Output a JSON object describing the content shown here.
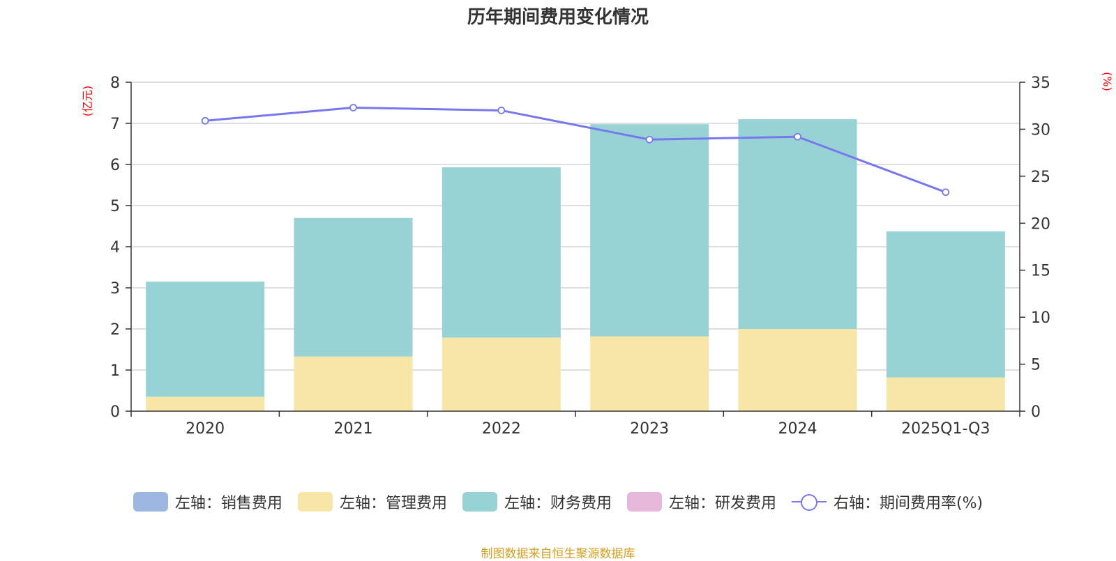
{
  "chart_data": {
    "type": "bar",
    "title": "历年期间费用变化情况",
    "categories": [
      "2020",
      "2021",
      "2022",
      "2023",
      "2024",
      "2025Q1-Q3"
    ],
    "series": [
      {
        "name": "左轴：销售费用",
        "axis": "left",
        "type": "bar",
        "color": "#9db8e0",
        "values": [
          0,
          0,
          0,
          0,
          0,
          0
        ]
      },
      {
        "name": "左轴：管理费用",
        "axis": "left",
        "type": "bar",
        "color": "#f7e6a6",
        "values": [
          0.35,
          1.33,
          1.79,
          1.82,
          2.0,
          0.82
        ]
      },
      {
        "name": "左轴：财务费用",
        "axis": "left",
        "type": "bar",
        "color": "#97d3d4",
        "values": [
          2.8,
          3.37,
          4.14,
          5.16,
          5.1,
          3.55
        ]
      },
      {
        "name": "左轴：研发费用",
        "axis": "left",
        "type": "bar",
        "color": "#e8b8da",
        "values": [
          0,
          0,
          0,
          0,
          0,
          0
        ]
      },
      {
        "name": "右轴：期间费用率(%)",
        "axis": "right",
        "type": "line",
        "color": "#7878ee",
        "values": [
          30.9,
          32.3,
          32.0,
          28.9,
          29.2,
          23.3
        ]
      }
    ],
    "left_axis": {
      "label": "(亿元)",
      "ylim": [
        0,
        8
      ],
      "ticks": [
        "0",
        "1",
        "2",
        "3",
        "4",
        "5",
        "6",
        "7",
        "8"
      ]
    },
    "right_axis": {
      "label": "(%)",
      "ylim": [
        0,
        35
      ],
      "ticks": [
        "0",
        "5",
        "10",
        "15",
        "20",
        "25",
        "30",
        "35"
      ]
    },
    "grid": true,
    "legend_position": "bottom"
  },
  "source": "制图数据来自恒生聚源数据库"
}
